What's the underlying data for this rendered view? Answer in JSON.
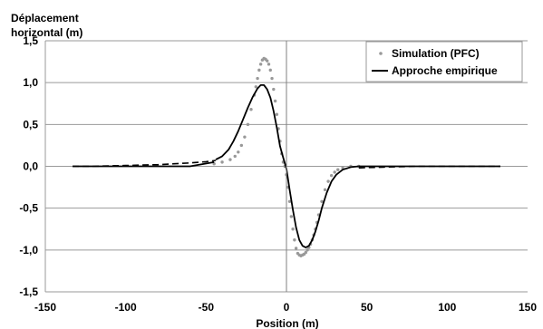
{
  "chart_data": {
    "type": "line",
    "title": "",
    "ylabel_line1": "Déplacement",
    "ylabel_line2": "horizontal (m)",
    "xlabel": "Position (m)",
    "xlim": [
      -150,
      150
    ],
    "ylim": [
      -1.5,
      1.5
    ],
    "x_ticks": [
      -150,
      -100,
      -50,
      0,
      50,
      100,
      150
    ],
    "x_tick_labels": [
      "-150",
      "-100",
      "-50",
      "0",
      "50",
      "100",
      "150"
    ],
    "y_ticks": [
      1.5,
      1.0,
      0.5,
      0.0,
      -0.5,
      -1.0,
      -1.5
    ],
    "y_tick_labels": [
      "1,5",
      "1,0",
      "0,5",
      "0,0",
      "-0,5",
      "-1,0",
      "-1,5"
    ],
    "horizontal_grid": true,
    "legend_position": "top-right",
    "series": [
      {
        "name": "Simulation (PFC)",
        "style": "markers",
        "color": "#999999",
        "x": [
          -45,
          -40,
          -35,
          -32,
          -30,
          -28,
          -26,
          -24,
          -22,
          -20,
          -19,
          -18,
          -17,
          -16,
          -15,
          -14,
          -13,
          -12,
          -11,
          -10,
          -9,
          -8,
          -7,
          -6,
          -5,
          -4,
          -3,
          -2,
          -1,
          0,
          1,
          2,
          3,
          4,
          5,
          6,
          7,
          8,
          9,
          10,
          11,
          12,
          13,
          14,
          15,
          16,
          17,
          18,
          19,
          20,
          22,
          24,
          26,
          28,
          30,
          32,
          35,
          40,
          45
        ],
        "y": [
          0.03,
          0.05,
          0.08,
          0.12,
          0.17,
          0.25,
          0.35,
          0.5,
          0.68,
          0.85,
          0.95,
          1.05,
          1.15,
          1.22,
          1.27,
          1.29,
          1.28,
          1.26,
          1.22,
          1.15,
          1.05,
          0.92,
          0.78,
          0.62,
          0.45,
          0.3,
          0.15,
          0.05,
          0.0,
          -0.1,
          -0.25,
          -0.42,
          -0.6,
          -0.75,
          -0.88,
          -0.98,
          -1.04,
          -1.06,
          -1.07,
          -1.06,
          -1.05,
          -1.03,
          -1.0,
          -0.97,
          -0.93,
          -0.88,
          -0.82,
          -0.75,
          -0.67,
          -0.58,
          -0.42,
          -0.28,
          -0.18,
          -0.11,
          -0.07,
          -0.04,
          -0.02,
          0.0,
          0.0
        ]
      },
      {
        "name": "Approche empirique",
        "style": "solid",
        "color": "#000000",
        "x": [
          -44,
          -40,
          -36,
          -33,
          -30,
          -27,
          -24,
          -21,
          -18,
          -16,
          -14,
          -12,
          -10,
          -8,
          -6,
          -4,
          -2,
          0,
          2,
          4,
          6,
          8,
          10,
          12,
          14,
          16,
          18,
          20,
          22,
          25,
          28,
          31,
          35,
          40,
          45
        ],
        "y": [
          0.08,
          0.12,
          0.2,
          0.3,
          0.42,
          0.56,
          0.7,
          0.83,
          0.93,
          0.97,
          0.97,
          0.92,
          0.82,
          0.66,
          0.46,
          0.24,
          0.1,
          -0.03,
          -0.28,
          -0.52,
          -0.73,
          -0.88,
          -0.95,
          -0.97,
          -0.95,
          -0.88,
          -0.78,
          -0.65,
          -0.5,
          -0.32,
          -0.18,
          -0.1,
          -0.04,
          -0.01,
          0.0
        ]
      },
      {
        "name": "",
        "style": "dashed",
        "color": "#000000",
        "x": [
          -133,
          -120,
          -110,
          -100,
          -90,
          -80,
          -70,
          -60,
          -50,
          -44
        ],
        "y": [
          0.0,
          0.0,
          0.005,
          0.01,
          0.015,
          0.02,
          0.03,
          0.04,
          0.055,
          0.07
        ]
      },
      {
        "name": "",
        "style": "dashed",
        "color": "#000000",
        "x": [
          45,
          50,
          60,
          70,
          80,
          90,
          100,
          110,
          120,
          133
        ],
        "y": [
          -0.02,
          -0.015,
          -0.01,
          -0.005,
          0.0,
          0.0,
          0.0,
          0.0,
          0.0,
          0.0
        ]
      },
      {
        "name": "",
        "style": "solid",
        "color": "#000000",
        "x": [
          -133,
          -100,
          -60,
          -45
        ],
        "y": [
          0.0,
          0.0,
          0.0,
          0.05
        ]
      },
      {
        "name": "",
        "style": "solid",
        "color": "#000000",
        "x": [
          45,
          60,
          100,
          133
        ],
        "y": [
          0.0,
          0.0,
          0.0,
          0.0
        ]
      }
    ]
  }
}
